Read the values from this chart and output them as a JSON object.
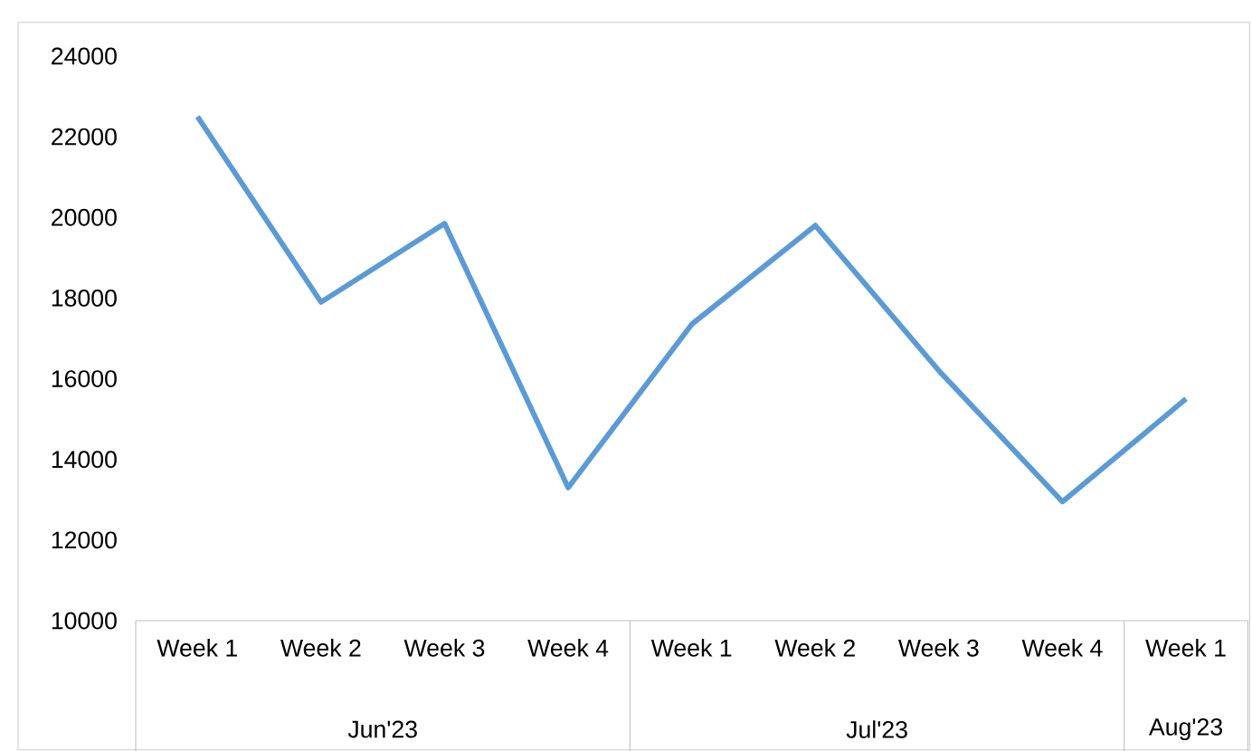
{
  "chart_data": {
    "type": "line",
    "categories": [
      "Week 1",
      "Week 2",
      "Week 3",
      "Week 4",
      "Week 1",
      "Week 2",
      "Week 3",
      "Week 4",
      "Week 1"
    ],
    "values": [
      22500,
      17900,
      19850,
      13300,
      17350,
      19800,
      16200,
      12950,
      15500
    ],
    "color": "#5b9bd5",
    "ylim": [
      10000,
      24000
    ],
    "yticks": [
      10000,
      12000,
      14000,
      16000,
      18000,
      20000,
      22000,
      24000
    ],
    "annotations": [
      "Jun'23",
      "Jul'23",
      "Aug'23"
    ]
  }
}
